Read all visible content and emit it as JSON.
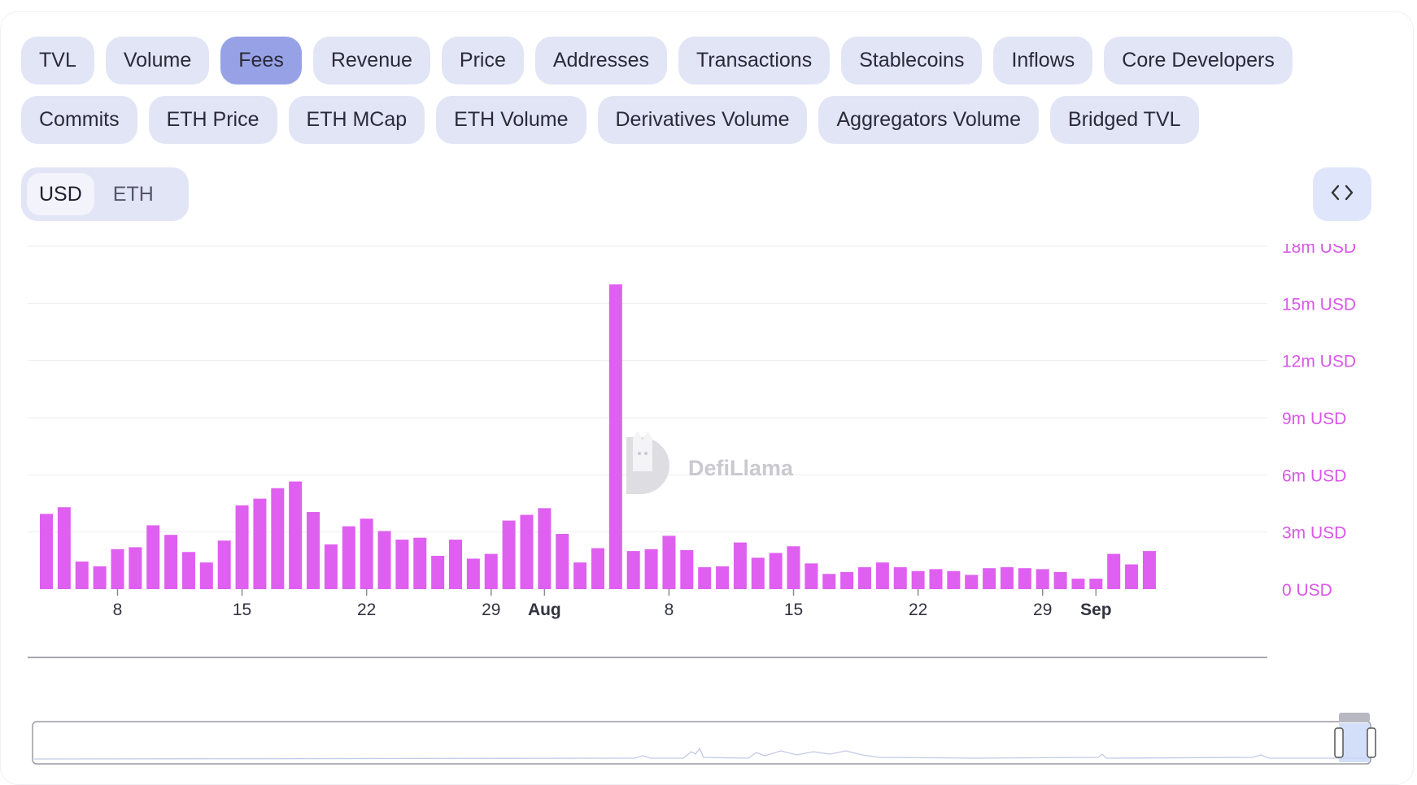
{
  "metric_tabs": [
    {
      "label": "TVL",
      "active": false
    },
    {
      "label": "Volume",
      "active": false
    },
    {
      "label": "Fees",
      "active": true
    },
    {
      "label": "Revenue",
      "active": false
    },
    {
      "label": "Price",
      "active": false
    },
    {
      "label": "Addresses",
      "active": false
    },
    {
      "label": "Transactions",
      "active": false
    },
    {
      "label": "Stablecoins",
      "active": false
    },
    {
      "label": "Inflows",
      "active": false
    },
    {
      "label": "Core Developers",
      "active": false
    },
    {
      "label": "Commits",
      "active": false
    },
    {
      "label": "ETH Price",
      "active": false
    },
    {
      "label": "ETH MCap",
      "active": false
    },
    {
      "label": "ETH Volume",
      "active": false
    },
    {
      "label": "Derivatives Volume",
      "active": false
    },
    {
      "label": "Aggregators Volume",
      "active": false
    },
    {
      "label": "Bridged TVL",
      "active": false
    }
  ],
  "currency_toggle": {
    "options": [
      "USD",
      "ETH"
    ],
    "selected": "USD"
  },
  "embed_icon": "code-brackets-icon",
  "watermark": {
    "text": "DefiLlama",
    "icon": "llama-logo-icon"
  },
  "colors": {
    "bar": "#df5ff0",
    "axis_label": "#d957e8",
    "tab_active": "#97a2e6",
    "tab": "#e2e5f6"
  },
  "chart_data": {
    "type": "bar",
    "title": "",
    "xlabel": "",
    "ylabel": "",
    "ylim": [
      0,
      18000000
    ],
    "yticks": [
      {
        "value": 18000000,
        "label": "18m USD"
      },
      {
        "value": 15000000,
        "label": "15m USD"
      },
      {
        "value": 12000000,
        "label": "12m USD"
      },
      {
        "value": 9000000,
        "label": "9m USD"
      },
      {
        "value": 6000000,
        "label": "6m USD"
      },
      {
        "value": 3000000,
        "label": "3m USD"
      },
      {
        "value": 0,
        "label": "0 USD"
      }
    ],
    "x_start": "Jul 4",
    "x_end": "Sep 4",
    "xticks": [
      {
        "date": "Jul 8",
        "label": "8",
        "bold": false
      },
      {
        "date": "Jul 15",
        "label": "15",
        "bold": false
      },
      {
        "date": "Jul 22",
        "label": "22",
        "bold": false
      },
      {
        "date": "Jul 29",
        "label": "29",
        "bold": false
      },
      {
        "date": "Aug 1",
        "label": "Aug",
        "bold": true
      },
      {
        "date": "Aug 8",
        "label": "8",
        "bold": false
      },
      {
        "date": "Aug 15",
        "label": "15",
        "bold": false
      },
      {
        "date": "Aug 22",
        "label": "22",
        "bold": false
      },
      {
        "date": "Aug 29",
        "label": "29",
        "bold": false
      },
      {
        "date": "Sep 1",
        "label": "Sep",
        "bold": true
      }
    ],
    "series": [
      {
        "values": [
          3950000,
          4300000,
          1450000,
          1200000,
          2100000,
          2200000,
          3350000,
          2850000,
          1950000,
          1400000,
          2550000,
          4400000,
          4750000,
          5300000,
          5650000,
          4050000,
          2350000,
          3300000,
          3700000,
          3050000,
          2600000,
          2700000,
          1750000,
          2600000,
          1600000,
          1850000,
          3600000,
          3900000,
          4250000,
          2900000,
          1400000,
          2150000,
          16000000,
          2000000,
          2100000,
          2800000,
          2050000,
          1150000,
          1200000,
          2450000,
          1650000,
          1900000,
          2250000,
          1350000,
          800000,
          900000,
          1150000,
          1400000,
          1150000,
          950000,
          1050000,
          950000,
          750000,
          1100000,
          1150000,
          1100000,
          1050000,
          900000,
          550000,
          550000,
          1850000,
          1300000,
          2000000
        ]
      }
    ]
  }
}
